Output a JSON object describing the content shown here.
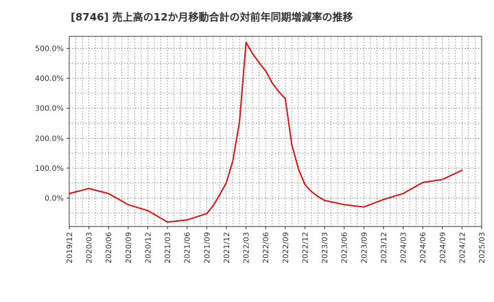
{
  "chart_data": {
    "type": "line",
    "title": "[8746]  売上高の12か月移動合計の対前年同期増減率の推移",
    "xlabel": "",
    "ylabel": "",
    "ylim": [
      -95,
      540
    ],
    "grid": true,
    "legend": "none",
    "y_ticks": [
      0,
      100,
      200,
      300,
      400,
      500
    ],
    "y_tick_labels": [
      "0.0%",
      "100.0%",
      "200.0%",
      "300.0%",
      "400.0%",
      "500.0%"
    ],
    "x_tick_labels": [
      "2019/12",
      "2020/03",
      "2020/06",
      "2020/09",
      "2020/12",
      "2021/03",
      "2021/06",
      "2021/09",
      "2021/12",
      "2022/03",
      "2022/06",
      "2022/09",
      "2022/12",
      "2023/03",
      "2023/06",
      "2023/09",
      "2023/12",
      "2024/03",
      "2024/06",
      "2024/09",
      "2024/12",
      "2025/03"
    ],
    "series": [
      {
        "name": "増減率",
        "color": "#dd1111",
        "x": [
          0,
          1,
          2,
          3,
          4,
          5,
          6,
          7,
          7.33,
          7.67,
          8,
          8.33,
          8.67,
          9,
          9.33,
          9.67,
          10,
          10.33,
          10.67,
          11,
          11.33,
          11.67,
          12,
          12.33,
          12.67,
          13,
          14,
          15,
          16,
          17,
          18,
          19,
          20
        ],
        "values": [
          15,
          32,
          15,
          -22,
          -42,
          -80,
          -73,
          -52,
          -25,
          12,
          52,
          125,
          255,
          520,
          483,
          452,
          425,
          385,
          355,
          332,
          178,
          97,
          45,
          22,
          5,
          -8,
          -22,
          -30,
          -5,
          15,
          52,
          62,
          93
        ]
      }
    ]
  }
}
